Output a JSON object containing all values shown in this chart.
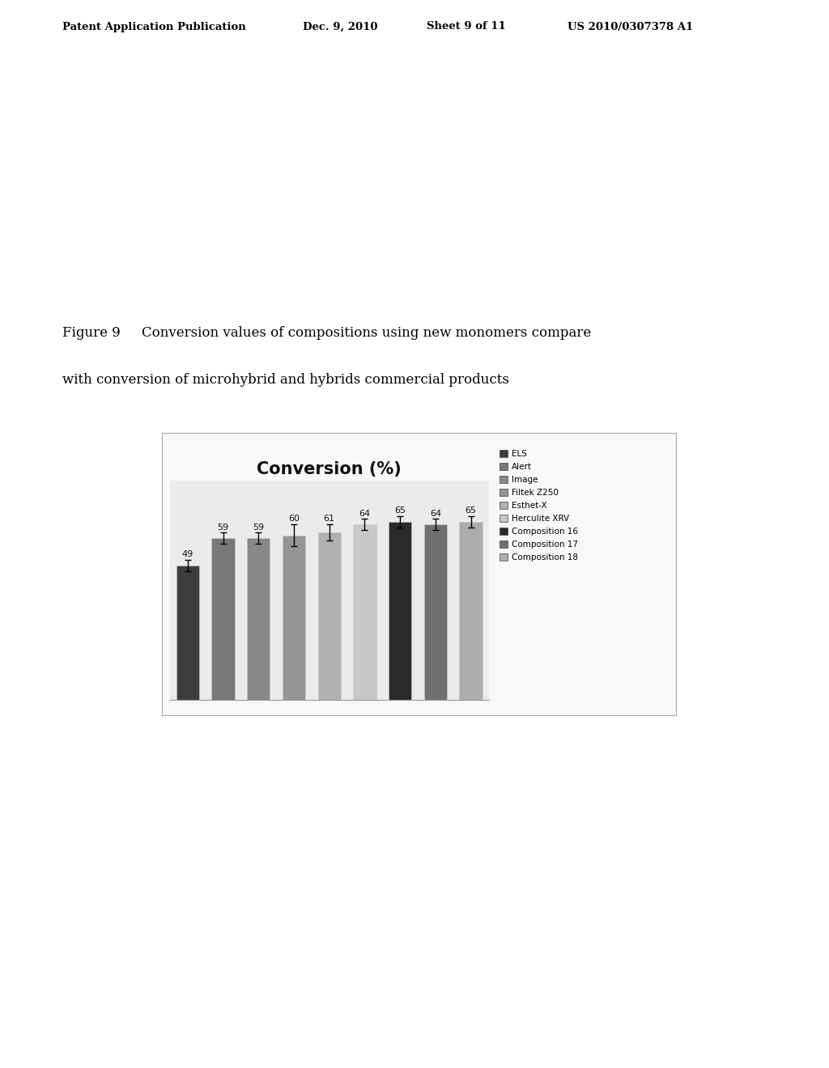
{
  "title": "Conversion (%)",
  "categories": [
    "ELS",
    "Alert",
    "Image",
    "Filtek Z250",
    "Esthet-X",
    "Herculite XRV",
    "Composition 16",
    "Composition 17",
    "Composition 18"
  ],
  "values": [
    49,
    59,
    59,
    60,
    61,
    64,
    65,
    64,
    65
  ],
  "errors": [
    2,
    2,
    2,
    4,
    3,
    2,
    2,
    2,
    2
  ],
  "bar_colors": [
    "#3d3d3d",
    "#787878",
    "#888888",
    "#959595",
    "#b0b0b0",
    "#c8c8c8",
    "#2a2a2a",
    "#707070",
    "#adadad"
  ],
  "background_color": "#ffffff",
  "chart_bg": "#ebebeb",
  "header_text": "Patent Application Publication",
  "header_date": "Dec. 9, 2010",
  "header_sheet": "Sheet 9 of 11",
  "header_patent": "US 2010/0307378 A1",
  "figure_caption_line1": "Figure 9     Conversion values of compositions using new monomers compare",
  "figure_caption_line2": "with conversion of microhybrid and hybrids commercial products",
  "ylim": [
    0,
    80
  ],
  "figsize": [
    10.24,
    13.2
  ],
  "dpi": 100
}
